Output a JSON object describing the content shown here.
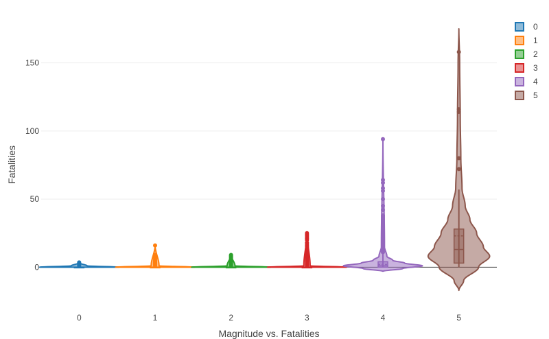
{
  "chart_data": {
    "type": "violin",
    "xlabel": "Magnitude vs. Fatalities",
    "ylabel": "Fatalities",
    "categories": [
      "0",
      "1",
      "2",
      "3",
      "4",
      "5"
    ],
    "ylim": [
      -23,
      177
    ],
    "yticks": [
      0,
      50,
      100,
      150
    ],
    "grid": true,
    "legend_position": "top-right",
    "series": [
      {
        "name": "0",
        "color": "#1f77b4",
        "q1": 0,
        "median": 0,
        "q3": 0,
        "mean": 0,
        "whisker_low": 0,
        "whisker_high": 0,
        "density": [
          [
            0,
            1.0
          ],
          [
            1,
            0.2
          ],
          [
            3,
            0.02
          ],
          [
            4,
            0
          ]
        ],
        "extent": [
          0,
          4
        ],
        "points": [
          1,
          1.5,
          2,
          2.5,
          3,
          3.5
        ]
      },
      {
        "name": "1",
        "color": "#ff7f0e",
        "q1": 0,
        "median": 0,
        "q3": 0,
        "mean": 0,
        "whisker_low": 0,
        "whisker_high": 0,
        "density": [
          [
            0,
            1.0
          ],
          [
            1,
            0.1
          ],
          [
            16,
            0
          ]
        ],
        "extent": [
          0,
          16
        ],
        "points": [
          1,
          2,
          2.5,
          3,
          3.5,
          4,
          4.5,
          5,
          6,
          7,
          8,
          9,
          16
        ]
      },
      {
        "name": "2",
        "color": "#2ca02c",
        "q1": 0,
        "median": 0,
        "q3": 0,
        "mean": 0,
        "whisker_low": 0,
        "whisker_high": 0,
        "density": [
          [
            0,
            1.0
          ],
          [
            1,
            0.1
          ],
          [
            9,
            0
          ]
        ],
        "extent": [
          0,
          9
        ],
        "points": [
          1,
          2,
          3,
          4,
          4.5,
          5,
          5.5,
          6,
          6.5,
          7,
          7.5,
          8,
          8.5,
          9
        ]
      },
      {
        "name": "3",
        "color": "#d62728",
        "q1": 0,
        "median": 0,
        "q3": 0,
        "mean": 0,
        "whisker_low": 0,
        "whisker_high": 0,
        "density": [
          [
            0,
            1.0
          ],
          [
            1,
            0.08
          ],
          [
            25,
            0
          ]
        ],
        "extent": [
          0,
          25
        ],
        "points": [
          1,
          2,
          3,
          4,
          5,
          6,
          7,
          8,
          9,
          10,
          11,
          12,
          13,
          14,
          15,
          16,
          17,
          18,
          20,
          21,
          22,
          23,
          24,
          25
        ]
      },
      {
        "name": "4",
        "color": "#9467bd",
        "q1": 0,
        "median": 1,
        "q3": 4,
        "mean": 2,
        "whisker_low": 0,
        "whisker_high": 10,
        "density": [
          [
            -3,
            0
          ],
          [
            -1,
            0.5
          ],
          [
            1,
            1.0
          ],
          [
            3,
            0.55
          ],
          [
            5,
            0.25
          ],
          [
            8,
            0.1
          ],
          [
            15,
            0.04
          ],
          [
            94,
            0
          ]
        ],
        "extent": [
          -3,
          94
        ],
        "points": [
          11,
          12,
          13,
          14,
          15,
          16,
          17,
          18,
          19,
          20,
          21,
          22,
          23,
          24,
          25,
          26,
          27,
          28,
          29,
          30,
          31,
          32,
          33,
          34,
          35,
          36,
          37,
          38,
          42,
          45,
          50,
          56,
          58,
          62,
          64,
          94
        ]
      },
      {
        "name": "5",
        "color": "#8c564b",
        "q1": 3,
        "median": 13,
        "q3": 28,
        "mean": 23,
        "whisker_low": 0,
        "whisker_high": 57,
        "density": [
          [
            -17,
            0
          ],
          [
            -10,
            0.12
          ],
          [
            0,
            0.5
          ],
          [
            8,
            0.78
          ],
          [
            15,
            0.62
          ],
          [
            25,
            0.45
          ],
          [
            35,
            0.28
          ],
          [
            45,
            0.16
          ],
          [
            58,
            0.08
          ],
          [
            80,
            0.05
          ],
          [
            110,
            0.035
          ],
          [
            150,
            0.02
          ],
          [
            175,
            0
          ]
        ],
        "extent": [
          -17,
          175
        ],
        "points": [
          72,
          80,
          114,
          116,
          158
        ]
      }
    ]
  }
}
